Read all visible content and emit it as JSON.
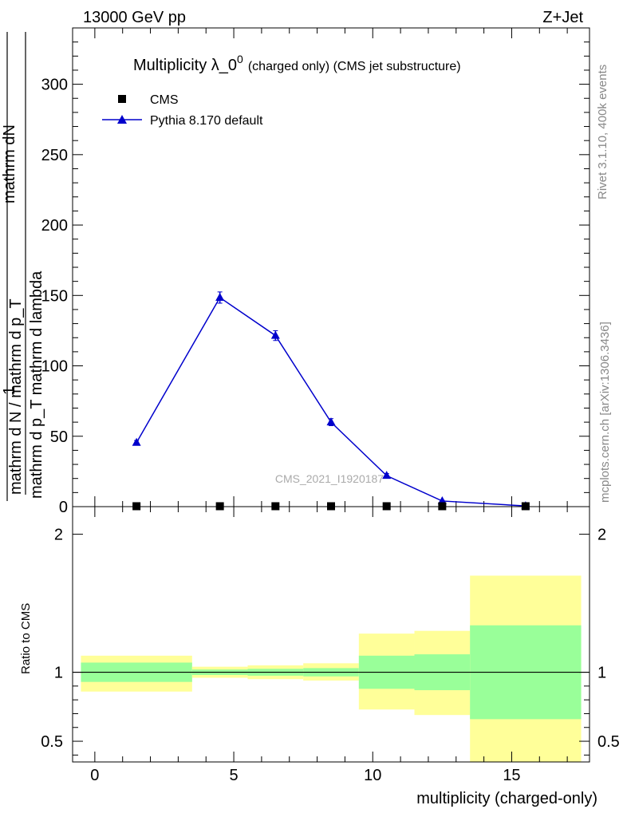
{
  "header": {
    "energy": "13000 GeV pp",
    "process": "Z+Jet"
  },
  "side_text": {
    "rivet": "Rivet 3.1.10,  400k events",
    "mcplots": "mcplots.cern.ch [arXiv:1306.3436]"
  },
  "watermark": "CMS_2021_I1920187",
  "chart_data": [
    {
      "type": "line",
      "title": "Multiplicity λ_0",
      "title_sup": "0",
      "subtitle": "(charged only) (CMS jet substructure)",
      "ylabel_numerator_top": "mathrm dN",
      "ylabel_numerator_bottom": "mathrm d p_T mathrm d lambda",
      "ylabel_one": "1",
      "ylabel_denominator": "mathrm d N / mathrm d p_T",
      "ylim": [
        0,
        340
      ],
      "yticks": [
        "0",
        "50",
        "100",
        "150",
        "200",
        "250",
        "300"
      ],
      "legend_position": "top-left",
      "series": [
        {
          "name": "CMS",
          "marker": "square",
          "color": "#000000",
          "x": [
            1.5,
            4.5,
            6.5,
            8.5,
            10.5,
            12.5,
            15.5
          ],
          "values": [
            0.3,
            0.3,
            0.3,
            0.3,
            0.3,
            0.3,
            0.3
          ]
        },
        {
          "name": "Pythia 8.170 default",
          "marker": "triangle",
          "color": "#0000cc",
          "x": [
            1.5,
            4.5,
            6.5,
            8.5,
            10.5,
            12.5,
            15.5
          ],
          "values": [
            45.5,
            148.5,
            121.5,
            60,
            22,
            4,
            0.5
          ],
          "errors": [
            1.5,
            4,
            3.5,
            2.5,
            1.5,
            0.5,
            0.2
          ]
        }
      ]
    },
    {
      "type": "area",
      "ylabel": "Ratio to CMS",
      "xlabel": "multiplicity (charged-only)",
      "xlim": [
        -0.8,
        17.8
      ],
      "ylim": [
        0.35,
        2.2
      ],
      "xticks": [
        "0",
        "5",
        "10",
        "15"
      ],
      "yticks": [
        "0.5",
        "1",
        "2"
      ],
      "bins": [
        {
          "x0": -0.5,
          "x1": 3.5,
          "green_lo": 0.93,
          "green_hi": 1.07,
          "yellow_lo": 0.86,
          "yellow_hi": 1.12
        },
        {
          "x0": 3.5,
          "x1": 5.5,
          "green_lo": 0.98,
          "green_hi": 1.02,
          "yellow_lo": 0.96,
          "yellow_hi": 1.04
        },
        {
          "x0": 5.5,
          "x1": 7.5,
          "green_lo": 0.975,
          "green_hi": 1.025,
          "yellow_lo": 0.95,
          "yellow_hi": 1.05
        },
        {
          "x0": 7.5,
          "x1": 9.5,
          "green_lo": 0.97,
          "green_hi": 1.03,
          "yellow_lo": 0.94,
          "yellow_hi": 1.065
        },
        {
          "x0": 9.5,
          "x1": 11.5,
          "green_lo": 0.88,
          "green_hi": 1.12,
          "yellow_lo": 0.73,
          "yellow_hi": 1.28
        },
        {
          "x0": 11.5,
          "x1": 13.5,
          "green_lo": 0.87,
          "green_hi": 1.13,
          "yellow_lo": 0.69,
          "yellow_hi": 1.3
        },
        {
          "x0": 13.5,
          "x1": 17.5,
          "green_lo": 0.66,
          "green_hi": 1.34,
          "yellow_lo": 0.35,
          "yellow_hi": 1.7
        }
      ]
    }
  ]
}
